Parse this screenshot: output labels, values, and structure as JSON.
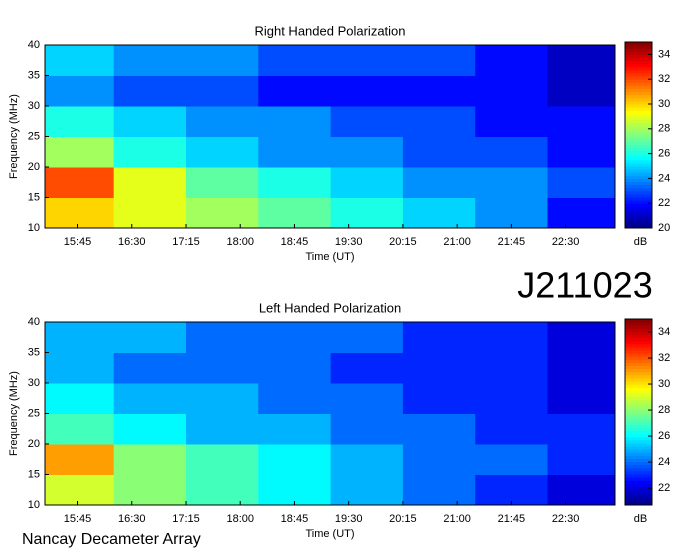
{
  "chart_data": [
    {
      "type": "heatmap",
      "title": "Right Handed Polarization",
      "xlabel": "Time (UT)",
      "ylabel": "Frequency (MHz)",
      "zlabel": "dB",
      "xlim": [
        "15:18",
        "23:11"
      ],
      "xticks": [
        "15:45",
        "16:30",
        "17:15",
        "18:00",
        "18:45",
        "19:30",
        "20:15",
        "21:00",
        "21:45",
        "22:30"
      ],
      "ylim": [
        10,
        40
      ],
      "yticks": [
        10,
        15,
        20,
        25,
        30,
        35,
        40
      ],
      "zlim": [
        20,
        35
      ],
      "zticks": [
        20,
        22,
        24,
        26,
        28,
        30,
        32,
        34
      ],
      "x": [
        "15:45",
        "16:45",
        "17:45",
        "18:45",
        "19:45",
        "20:45",
        "21:45",
        "22:45"
      ],
      "y": [
        12.5,
        17.5,
        22.5,
        27.5,
        32.5,
        37.5
      ],
      "z": [
        [
          30,
          29,
          28,
          27,
          26,
          25,
          24,
          22
        ],
        [
          32,
          29,
          27,
          26,
          25,
          24,
          24,
          23
        ],
        [
          28,
          26,
          25,
          24,
          24,
          23,
          23,
          22
        ],
        [
          26,
          25,
          24,
          24,
          23,
          23,
          22,
          22
        ],
        [
          24,
          23,
          23,
          22,
          22,
          22,
          22,
          21
        ],
        [
          25,
          24,
          24,
          23,
          23,
          23,
          22,
          21
        ]
      ]
    },
    {
      "type": "heatmap",
      "title": "Left Handed Polarization",
      "xlabel": "Time (UT)",
      "ylabel": "Frequency (MHz)",
      "zlabel": "dB",
      "xlim": [
        "15:18",
        "23:11"
      ],
      "xticks": [
        "15:45",
        "16:30",
        "17:15",
        "18:00",
        "18:45",
        "19:30",
        "20:15",
        "21:00",
        "21:45",
        "22:30"
      ],
      "ylim": [
        10,
        40
      ],
      "yticks": [
        10,
        15,
        20,
        25,
        30,
        35,
        40
      ],
      "zlim": [
        20.7,
        35
      ],
      "zticks": [
        22,
        24,
        26,
        28,
        30,
        32,
        34
      ],
      "x": [
        "15:45",
        "16:45",
        "17:45",
        "18:45",
        "19:45",
        "20:45",
        "21:45",
        "22:45"
      ],
      "y": [
        12.5,
        17.5,
        22.5,
        27.5,
        32.5,
        37.5
      ],
      "z": [
        [
          29,
          28,
          27,
          26,
          25,
          24,
          23,
          22
        ],
        [
          31,
          28,
          27,
          26,
          25,
          24,
          24,
          23
        ],
        [
          27,
          26,
          25,
          25,
          24,
          24,
          23,
          23
        ],
        [
          26,
          25,
          25,
          24,
          24,
          23,
          23,
          22
        ],
        [
          25,
          24,
          24,
          24,
          23,
          23,
          23,
          22
        ],
        [
          25,
          25,
          24,
          24,
          24,
          23,
          23,
          22
        ]
      ]
    }
  ],
  "station": "J211023",
  "observatory": "Nancay Decameter Array"
}
